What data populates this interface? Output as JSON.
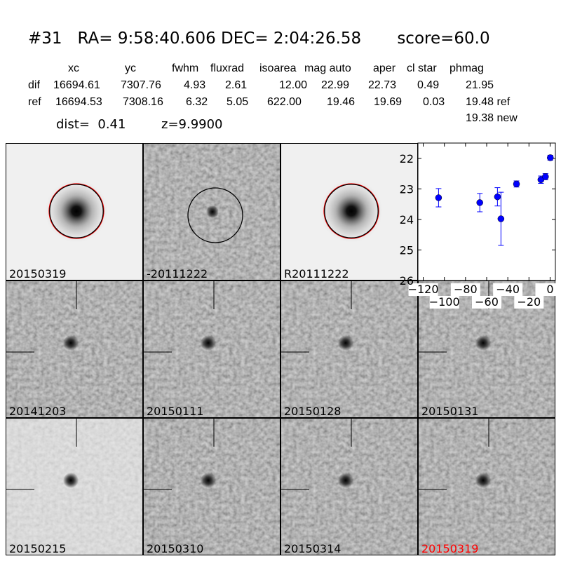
{
  "header": {
    "title": "#31   RA= 9:58:40.606 DEC= 2:04:26.58       score=60.0",
    "columns": [
      "xc",
      "yc",
      "fwhm",
      "fluxrad",
      "isoarea",
      "mag auto",
      "aper",
      "cl star",
      "phmag"
    ],
    "rows": [
      {
        "label": "dif",
        "values": [
          "16694.61",
          "7307.76",
          "4.93",
          "2.61",
          "12.00",
          "22.99",
          "22.73",
          "0.49",
          "21.95"
        ]
      },
      {
        "label": "ref",
        "values": [
          "16694.53",
          "7308.16",
          "6.32",
          "5.05",
          "622.00",
          "19.46",
          "19.69",
          "0.03",
          "19.48 ref"
        ]
      }
    ],
    "extra_phmag": "19.38 new",
    "dist": "dist=  0.41",
    "z": "z=9.9900"
  },
  "stamps": [
    {
      "label": "20150319",
      "type": "smooth",
      "circles": [
        "#ff0000",
        "#000000"
      ],
      "label_color": "#000000"
    },
    {
      "label": "-20111222",
      "type": "noisy",
      "circles": [
        "#000000"
      ],
      "label_color": "#000000"
    },
    {
      "label": "R20111222",
      "type": "smooth",
      "circles": [
        "#ff0000",
        "#000000"
      ],
      "label_color": "#000000"
    },
    {
      "label": "20141203",
      "type": "noisy",
      "label_color": "#000000"
    },
    {
      "label": "20150111",
      "type": "noisy",
      "label_color": "#000000"
    },
    {
      "label": "20150128",
      "type": "noisy",
      "label_color": "#000000"
    },
    {
      "label": "20150131",
      "type": "noisy",
      "label_color": "#000000"
    },
    {
      "label": "20150215",
      "type": "light",
      "label_color": "#000000"
    },
    {
      "label": "20150310",
      "type": "noisy",
      "label_color": "#000000"
    },
    {
      "label": "20150314",
      "type": "noisy",
      "label_color": "#000000"
    },
    {
      "label": "20150319",
      "type": "noisy",
      "label_color": "#ff0000"
    }
  ],
  "chart_data": {
    "type": "scatter",
    "xlim": [
      -125,
      5
    ],
    "ylim": [
      26,
      21.5
    ],
    "y_inverted": true,
    "xticks": [
      -120,
      -100,
      -80,
      -60,
      -40,
      -20,
      0
    ],
    "xtick_labels": [
      "−120",
      "−100",
      "−80",
      "−60",
      "−40",
      "−20",
      "0"
    ],
    "yticks": [
      22,
      23,
      24,
      25,
      26
    ],
    "ytick_labels": [
      "22",
      "23",
      "24",
      "25",
      "26"
    ],
    "color": "#0000ff",
    "points": [
      {
        "x": -105.5,
        "y": 23.29,
        "err": 0.3
      },
      {
        "x": -66.5,
        "y": 23.45,
        "err": 0.3
      },
      {
        "x": -49.8,
        "y": 23.26,
        "err": 0.3
      },
      {
        "x": -46.5,
        "y": 23.98,
        "err": 0.87
      },
      {
        "x": -31.8,
        "y": 22.84,
        "err": 0.1
      },
      {
        "x": -8.7,
        "y": 22.7,
        "err": 0.12
      },
      {
        "x": -4.4,
        "y": 22.6,
        "err": 0.1
      },
      {
        "x": 0.2,
        "y": 21.98,
        "err": 0.08
      }
    ]
  }
}
